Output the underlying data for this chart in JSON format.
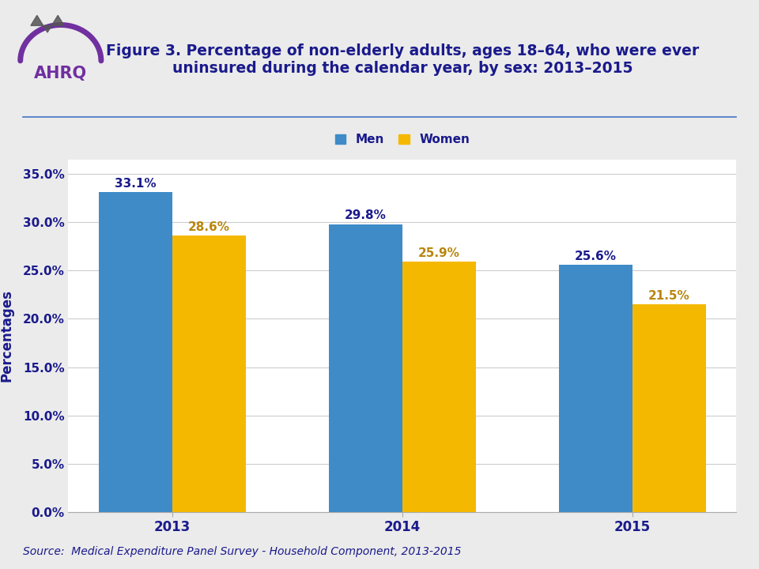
{
  "title_line1": "Figure 3. Percentage of non-elderly adults, ages 18–64, who were ever",
  "title_line2": "uninsured during the calendar year, by sex: 2013–2015",
  "title_color": "#1a1a8c",
  "title_fontsize": 13.5,
  "years": [
    "2013",
    "2014",
    "2015"
  ],
  "men_values": [
    33.1,
    29.8,
    25.6
  ],
  "women_values": [
    28.6,
    25.9,
    21.5
  ],
  "men_color": "#3e8bc8",
  "women_color": "#f5b800",
  "ylabel": "Percentages",
  "ylabel_color": "#1a1a8c",
  "ylabel_fontsize": 12,
  "ytick_labels": [
    "0.0%",
    "5.0%",
    "10.0%",
    "15.0%",
    "20.0%",
    "25.0%",
    "30.0%",
    "35.0%"
  ],
  "ytick_values": [
    0,
    5,
    10,
    15,
    20,
    25,
    30,
    35
  ],
  "ylim": [
    0,
    36.5
  ],
  "xtick_fontsize": 12,
  "ytick_fontsize": 11,
  "legend_labels": [
    "Men",
    "Women"
  ],
  "legend_fontsize": 11,
  "annotation_color_men": "#1a1a8c",
  "annotation_color_women": "#b8860b",
  "annotation_fontsize": 11,
  "source_text": "Source:  Medical Expenditure Panel Survey - Household Component, 2013-2015",
  "source_color": "#1a1a8c",
  "source_fontsize": 10,
  "bg_color": "#ebebeb",
  "plot_bg_color": "#ffffff",
  "bar_width": 0.32,
  "grid_color": "#cccccc",
  "separator_color": "#4472c4"
}
